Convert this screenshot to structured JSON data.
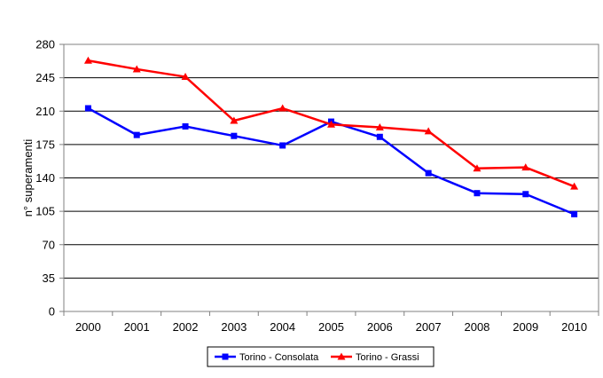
{
  "chart_data": {
    "type": "line",
    "title": "",
    "xlabel": "",
    "ylabel": "n° superamenti",
    "categories": [
      "2000",
      "2001",
      "2002",
      "2003",
      "2004",
      "2005",
      "2006",
      "2007",
      "2008",
      "2009",
      "2010"
    ],
    "ylim": [
      0,
      280
    ],
    "yticks": [
      0,
      35,
      70,
      105,
      140,
      175,
      210,
      245,
      280
    ],
    "grid": true,
    "legend_position": "bottom",
    "series": [
      {
        "name": "Torino - Consolata",
        "color": "#0000ff",
        "marker": "square",
        "values": [
          213,
          185,
          194,
          184,
          174,
          199,
          183,
          145,
          124,
          123,
          102
        ]
      },
      {
        "name": "Torino - Grassi",
        "color": "#ff0000",
        "marker": "triangle",
        "values": [
          263,
          254,
          246,
          200,
          213,
          196,
          193,
          189,
          150,
          151,
          131
        ]
      }
    ]
  }
}
